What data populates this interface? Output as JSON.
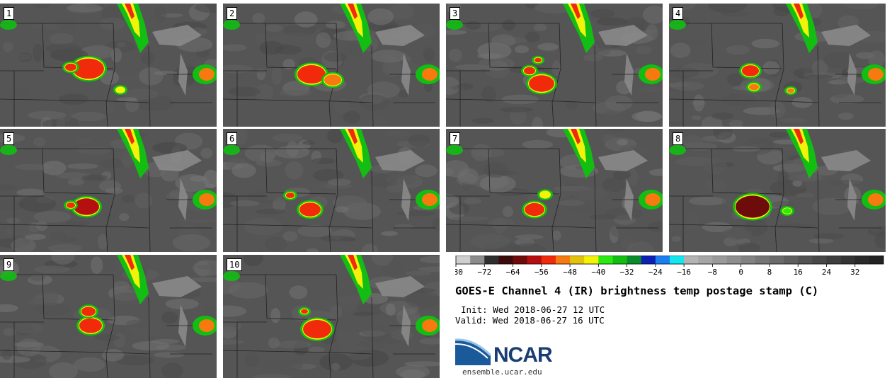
{
  "chart_data": {
    "type": "heatmap",
    "title": "GOES-E Channel 4 (IR) brightness temp postage stamp (C)",
    "init": "Init: Wed 2018-06-27 12 UTC",
    "valid": "Valid: Wed 2018-06-27 16 UTC",
    "panels": [
      "1",
      "2",
      "3",
      "4",
      "5",
      "6",
      "7",
      "8",
      "9",
      "10"
    ],
    "colorbar": {
      "min": -80,
      "max": 40,
      "step": 4,
      "tick_values": [
        -80,
        -72,
        -64,
        -56,
        -48,
        -40,
        -32,
        -24,
        -16,
        -8,
        0,
        8,
        16,
        24,
        32
      ],
      "tick_labels": [
        "−80",
        "−72",
        "−64",
        "−56",
        "−48",
        "−40",
        "−32",
        "−24",
        "−16",
        "−8",
        "0",
        "8",
        "16",
        "24",
        "32"
      ],
      "colors": [
        "#cfcfcf",
        "#8c8c8c",
        "#2e2e2e",
        "#3c0a0a",
        "#6e0b0b",
        "#b50f0f",
        "#f02a0a",
        "#f77a10",
        "#e2c20c",
        "#f3f30a",
        "#2bea12",
        "#12be12",
        "#0b8c2a",
        "#0d20b4",
        "#1a7df0",
        "#14e6f0",
        "#b4b4b4",
        "#a6a6a6",
        "#9a9a9a",
        "#8e8e8e",
        "#828282",
        "#767676",
        "#6a6a6a",
        "#5e5e5e",
        "#525252",
        "#484848",
        "#3e3e3e",
        "#343434",
        "#2a2a2a",
        "#222222"
      ]
    }
  },
  "branding": {
    "logo_text": "NCAR",
    "site": "ensemble.ucar.edu"
  }
}
